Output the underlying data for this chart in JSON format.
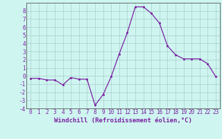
{
  "x": [
    0,
    1,
    2,
    3,
    4,
    5,
    6,
    7,
    8,
    9,
    10,
    11,
    12,
    13,
    14,
    15,
    16,
    17,
    18,
    19,
    20,
    21,
    22,
    23
  ],
  "y": [
    -0.3,
    -0.3,
    -0.5,
    -0.5,
    -1.1,
    -0.2,
    -0.4,
    -0.4,
    -3.6,
    -2.3,
    -0.1,
    2.7,
    5.3,
    8.5,
    8.5,
    7.7,
    6.5,
    3.7,
    2.6,
    2.1,
    2.1,
    2.1,
    1.5,
    -0.1
  ],
  "line_color": "#7B1FA2",
  "marker": "s",
  "marker_size": 2,
  "bg_color": "#cef5f0",
  "grid_color": "#aacccc",
  "xlabel": "Windchill (Refroidissement éolien,°C)",
  "xlim": [
    -0.5,
    23.5
  ],
  "ylim": [
    -4,
    9
  ],
  "xticks": [
    0,
    1,
    2,
    3,
    4,
    5,
    6,
    7,
    8,
    9,
    10,
    11,
    12,
    13,
    14,
    15,
    16,
    17,
    18,
    19,
    20,
    21,
    22,
    23
  ],
  "yticks": [
    -4,
    -3,
    -2,
    -1,
    0,
    1,
    2,
    3,
    4,
    5,
    6,
    7,
    8
  ],
  "tick_fontsize": 5.5,
  "label_fontsize": 6.5,
  "spine_color": "#555555"
}
